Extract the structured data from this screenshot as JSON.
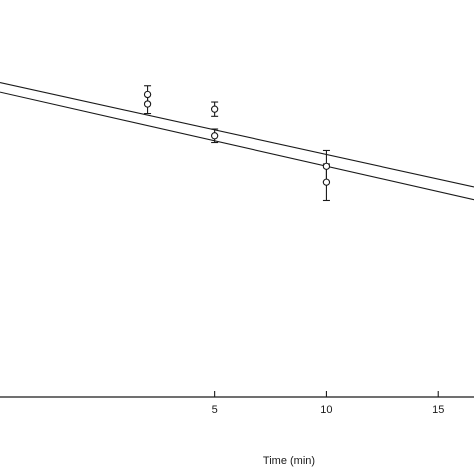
{
  "chart_data": {
    "type": "scatter",
    "title": "",
    "xlabel": "Time (min)",
    "ylabel": "",
    "xlim": [
      -4.6,
      16.6
    ],
    "ylim": [
      0,
      1
    ],
    "x_ticks": [
      5,
      10,
      15
    ],
    "grid": false,
    "legend": "none",
    "series": [
      {
        "marker": "open-circle",
        "x": [
          2,
          5,
          10
        ],
        "y": [
          0.762,
          0.725,
          0.581
        ],
        "err": [
          0.022,
          0.018,
          0.04
        ]
      },
      {
        "marker": "open-circle",
        "x": [
          2,
          5,
          10
        ],
        "y": [
          0.738,
          0.658,
          0.541
        ],
        "err": [
          0.024,
          0.017,
          0.046
        ]
      }
    ],
    "fit_lines": [
      {
        "x": [
          -4.6,
          16.6
        ],
        "y": [
          0.792,
          0.529
        ]
      },
      {
        "x": [
          -4.6,
          16.6
        ],
        "y": [
          0.768,
          0.497
        ]
      }
    ]
  }
}
